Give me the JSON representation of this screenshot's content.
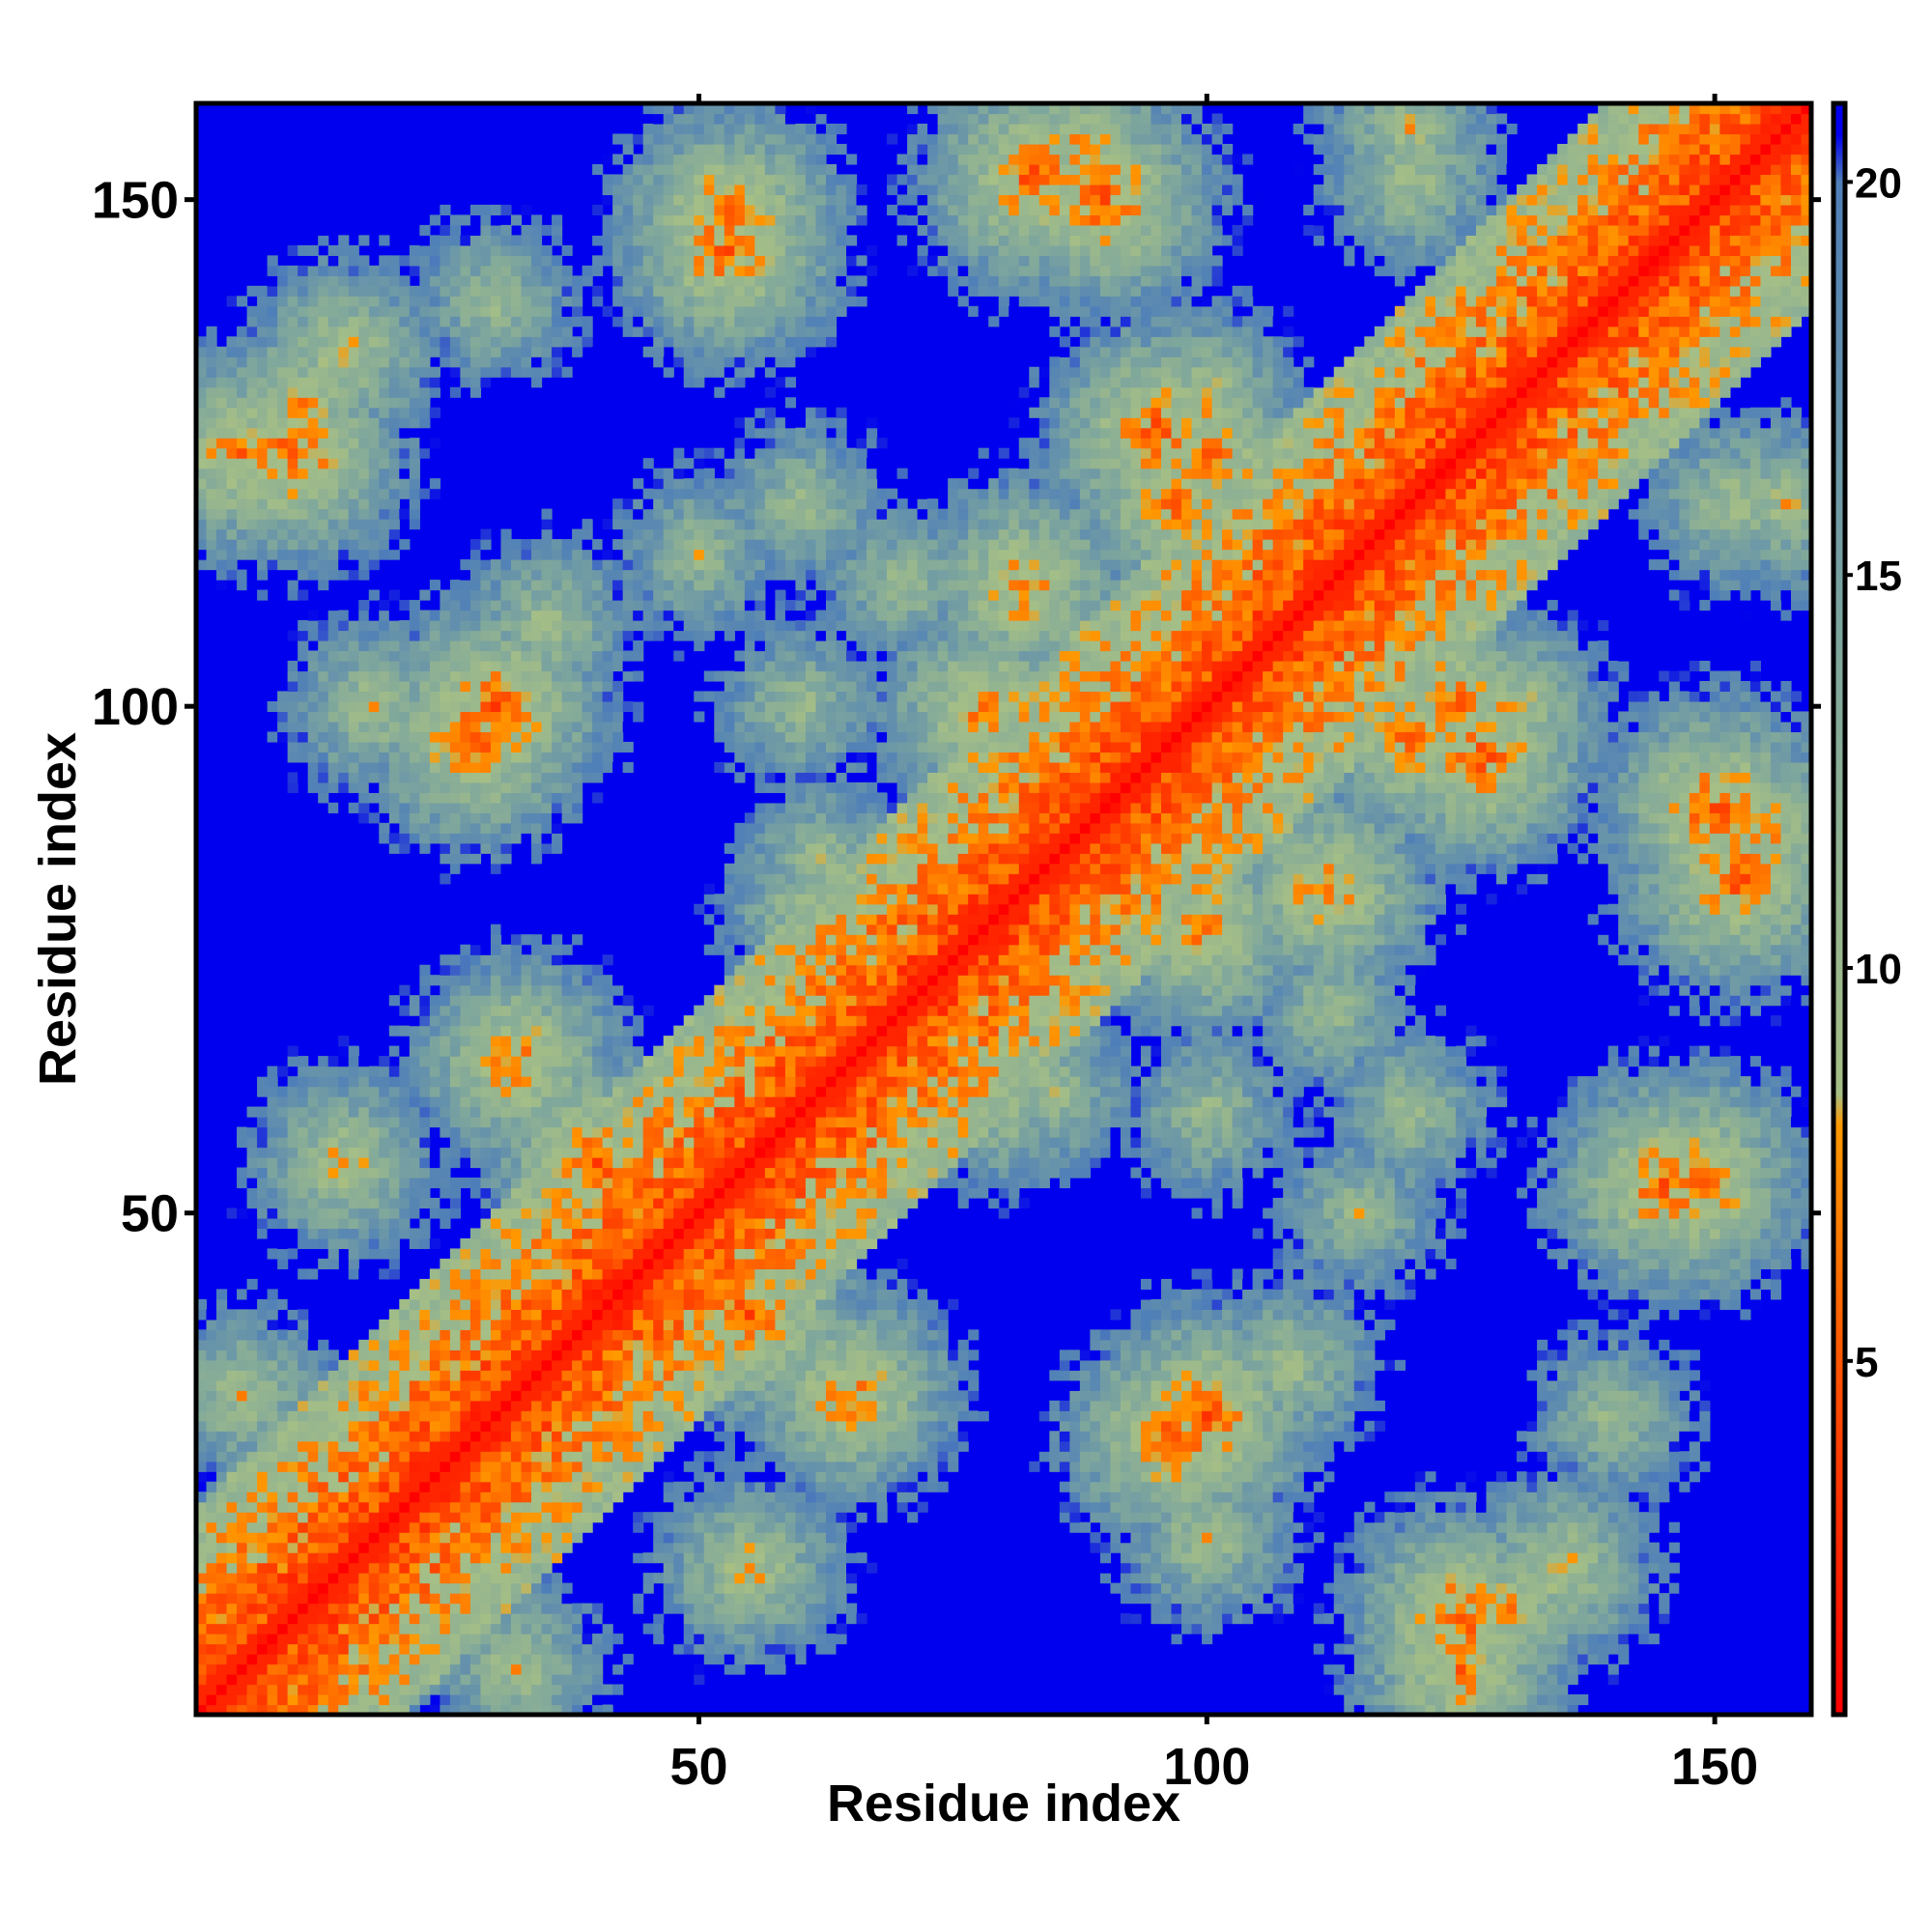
{
  "chart_data": {
    "type": "heatmap",
    "title": "",
    "xlabel": "Residue index",
    "ylabel": "Residue index",
    "n_residues": 159,
    "xlim": [
      1,
      159
    ],
    "ylim": [
      1,
      159
    ],
    "x_ticks": [
      50,
      100,
      150
    ],
    "y_ticks": [
      50,
      100,
      150
    ],
    "colorbar": {
      "range": [
        0.5,
        21
      ],
      "ticks": [
        5,
        10,
        15,
        20
      ],
      "stops": [
        {
          "value": 0.5,
          "color": "#ff0000"
        },
        {
          "value": 4.5,
          "color": "#ff4a00"
        },
        {
          "value": 8.0,
          "color": "#ff9900"
        },
        {
          "value": 8.4,
          "color": "#a6bf86"
        },
        {
          "value": 14.0,
          "color": "#7fa79c"
        },
        {
          "value": 20.0,
          "color": "#4f7fb8"
        },
        {
          "value": 20.6,
          "color": "#0000ee"
        }
      ],
      "out_of_range_color": "#0000ee"
    },
    "contact_clusters": [
      {
        "i": 5,
        "j": 125,
        "value": 6
      },
      {
        "i": 11,
        "j": 130,
        "value": 8
      },
      {
        "i": 18,
        "j": 100,
        "value": 9
      },
      {
        "i": 30,
        "j": 100,
        "value": 5
      },
      {
        "i": 32,
        "j": 65,
        "value": 6
      },
      {
        "i": 16,
        "j": 55,
        "value": 10
      },
      {
        "i": 30,
        "j": 140,
        "value": 10
      },
      {
        "i": 53,
        "j": 148,
        "value": 5
      },
      {
        "i": 83,
        "j": 152,
        "value": 5
      },
      {
        "i": 88,
        "j": 155,
        "value": 7
      },
      {
        "i": 120,
        "j": 157,
        "value": 9
      },
      {
        "i": 78,
        "j": 100,
        "value": 6
      },
      {
        "i": 65,
        "j": 70,
        "value": 7
      },
      {
        "i": 55,
        "j": 40,
        "value": 5
      },
      {
        "i": 32,
        "j": 5,
        "value": 9
      },
      {
        "i": 55,
        "j": 15,
        "value": 8
      },
      {
        "i": 97,
        "j": 28,
        "value": 5
      },
      {
        "i": 108,
        "j": 35,
        "value": 9
      },
      {
        "i": 100,
        "j": 60,
        "value": 10
      },
      {
        "i": 125,
        "j": 10,
        "value": 5
      },
      {
        "i": 135,
        "j": 15,
        "value": 8
      },
      {
        "i": 145,
        "j": 53,
        "value": 5
      },
      {
        "i": 150,
        "j": 90,
        "value": 5
      },
      {
        "i": 152,
        "j": 120,
        "value": 9
      },
      {
        "i": 127,
        "j": 95,
        "value": 5
      },
      {
        "i": 112,
        "j": 82,
        "value": 6
      },
      {
        "i": 100,
        "j": 125,
        "value": 6
      },
      {
        "i": 97,
        "j": 120,
        "value": 6
      },
      {
        "i": 108,
        "j": 120,
        "value": 8
      },
      {
        "i": 75,
        "j": 68,
        "value": 6
      },
      {
        "i": 85,
        "j": 62,
        "value": 10
      },
      {
        "i": 120,
        "j": 60,
        "value": 10
      },
      {
        "i": 60,
        "j": 80,
        "value": 10
      },
      {
        "i": 70,
        "j": 112,
        "value": 10
      },
      {
        "i": 115,
        "j": 50,
        "value": 10
      },
      {
        "i": 140,
        "j": 30,
        "value": 10
      },
      {
        "i": 130,
        "j": 100,
        "value": 8
      }
    ],
    "grid": false,
    "legend": "colorbar-right"
  }
}
